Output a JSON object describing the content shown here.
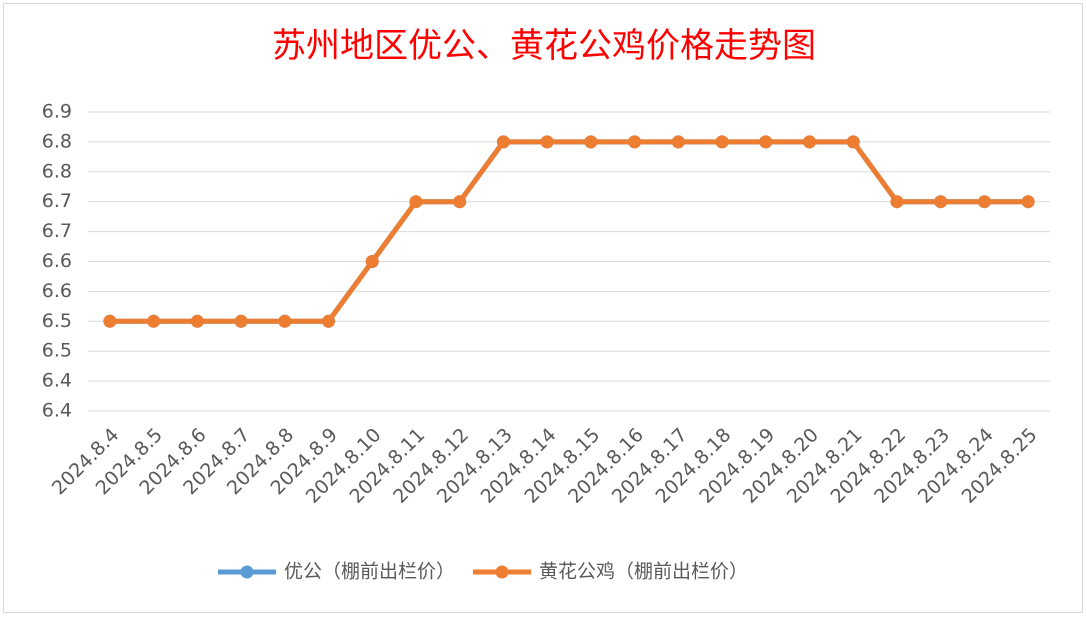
{
  "chart_data": {
    "type": "line",
    "title": "苏州地区优公、黄花公鸡价格走势图",
    "categories": [
      "2024.8.4",
      "2024.8.5",
      "2024.8.6",
      "2024.8.7",
      "2024.8.8",
      "2024.8.9",
      "2024.8.10",
      "2024.8.11",
      "2024.8.12",
      "2024.8.13",
      "2024.8.14",
      "2024.8.15",
      "2024.8.16",
      "2024.8.17",
      "2024.8.18",
      "2024.8.19",
      "2024.8.20",
      "2024.8.21",
      "2024.8.22",
      "2024.8.23",
      "2024.8.24",
      "2024.8.25"
    ],
    "series": [
      {
        "name": "优公（棚前出栏价）",
        "color": "#5b9bd5",
        "values": [
          6.5,
          6.5,
          6.5,
          6.5,
          6.5,
          6.5,
          6.6,
          6.7,
          6.7,
          6.8,
          6.8,
          6.8,
          6.8,
          6.8,
          6.8,
          6.8,
          6.8,
          6.8,
          6.7,
          6.7,
          6.7,
          6.7
        ]
      },
      {
        "name": "黄花公鸡（棚前出栏价）",
        "color": "#ed7d31",
        "values": [
          6.5,
          6.5,
          6.5,
          6.5,
          6.5,
          6.5,
          6.6,
          6.7,
          6.7,
          6.8,
          6.8,
          6.8,
          6.8,
          6.8,
          6.8,
          6.8,
          6.8,
          6.8,
          6.7,
          6.7,
          6.7,
          6.7
        ]
      }
    ],
    "ylim": [
      6.35,
      6.85
    ],
    "yticks": [
      {
        "value": 6.35,
        "label": "6.4"
      },
      {
        "value": 6.4,
        "label": "6.4"
      },
      {
        "value": 6.45,
        "label": "6.5"
      },
      {
        "value": 6.5,
        "label": "6.5"
      },
      {
        "value": 6.55,
        "label": "6.6"
      },
      {
        "value": 6.6,
        "label": "6.6"
      },
      {
        "value": 6.65,
        "label": "6.7"
      },
      {
        "value": 6.7,
        "label": "6.7"
      },
      {
        "value": 6.75,
        "label": "6.8"
      },
      {
        "value": 6.8,
        "label": "6.8"
      },
      {
        "value": 6.85,
        "label": "6.9"
      }
    ],
    "grid": true,
    "legend": "bottom"
  }
}
